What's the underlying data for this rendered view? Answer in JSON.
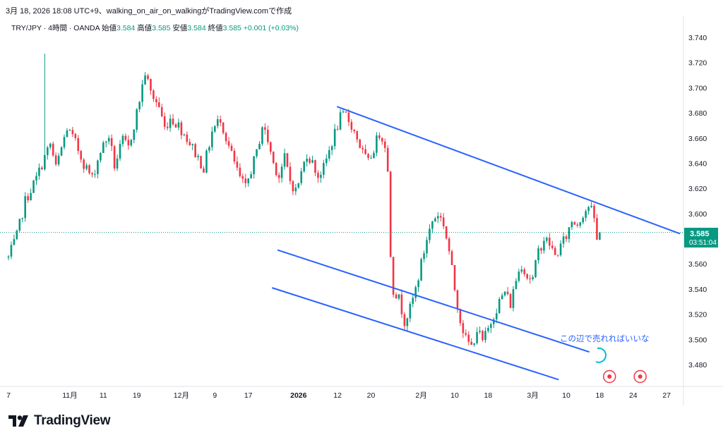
{
  "header": {
    "caption": "3月 18, 2026 18:08 UTC+9、walking_on_air_on_walkingがTradingView.comで作成"
  },
  "symbol": {
    "name": "TRY/JPY · 4時間 · OANDA",
    "open_label": "始値",
    "open": "3.584",
    "high_label": "高値",
    "high": "3.585",
    "low_label": "安値",
    "low": "3.584",
    "close_label": "終値",
    "close": "3.585",
    "change": "+0.001 (+0.03%)"
  },
  "price_badge": {
    "price": "3.585",
    "countdown": "03:51:04"
  },
  "annotation": "この辺で売れればいいな",
  "logo": {
    "text": "TradingView"
  },
  "colors": {
    "up": "#089981",
    "down": "#f23645",
    "trendline": "#2962ff",
    "annotation": "#2962ff",
    "circle": "#00bcd4",
    "event": "#f23645",
    "badge": "#089981"
  },
  "chart_data": {
    "type": "candlestick",
    "y_axis": {
      "min": 3.465,
      "max": 3.745,
      "ticks": [
        "3.480",
        "3.500",
        "3.520",
        "3.540",
        "3.560",
        "3.580",
        "3.600",
        "3.620",
        "3.640",
        "3.660",
        "3.680",
        "3.700",
        "3.720",
        "3.740"
      ]
    },
    "x_ticks": [
      {
        "label": "7",
        "bar": 0
      },
      {
        "label": "11月",
        "bar": 22
      },
      {
        "label": "11",
        "bar": 34
      },
      {
        "label": "19",
        "bar": 46
      },
      {
        "label": "12月",
        "bar": 62
      },
      {
        "label": "9",
        "bar": 74
      },
      {
        "label": "17",
        "bar": 86
      },
      {
        "label": "2026",
        "bar": 104,
        "bold": true
      },
      {
        "label": "12",
        "bar": 118
      },
      {
        "label": "20",
        "bar": 130
      },
      {
        "label": "2月",
        "bar": 148
      },
      {
        "label": "10",
        "bar": 160
      },
      {
        "label": "18",
        "bar": 172
      },
      {
        "label": "3月",
        "bar": 188
      },
      {
        "label": "10",
        "bar": 200
      },
      {
        "label": "18",
        "bar": 212
      },
      {
        "label": "24",
        "bar": 224
      },
      {
        "label": "27",
        "bar": 236
      }
    ],
    "anchors": [
      [
        0,
        3.565
      ],
      [
        3,
        3.582
      ],
      [
        6,
        3.61
      ],
      [
        10,
        3.628
      ],
      [
        13,
        3.645
      ],
      [
        15,
        3.655
      ],
      [
        17,
        3.636
      ],
      [
        19,
        3.652
      ],
      [
        21,
        3.668
      ],
      [
        24,
        3.656
      ],
      [
        27,
        3.64
      ],
      [
        30,
        3.628
      ],
      [
        33,
        3.65
      ],
      [
        36,
        3.662
      ],
      [
        38,
        3.638
      ],
      [
        41,
        3.658
      ],
      [
        43,
        3.652
      ],
      [
        46,
        3.68
      ],
      [
        49,
        3.712
      ],
      [
        51,
        3.696
      ],
      [
        54,
        3.685
      ],
      [
        56,
        3.668
      ],
      [
        58,
        3.676
      ],
      [
        61,
        3.67
      ],
      [
        64,
        3.66
      ],
      [
        67,
        3.648
      ],
      [
        70,
        3.636
      ],
      [
        73,
        3.665
      ],
      [
        76,
        3.676
      ],
      [
        78,
        3.66
      ],
      [
        81,
        3.64
      ],
      [
        83,
        3.628
      ],
      [
        85,
        3.62
      ],
      [
        87,
        3.635
      ],
      [
        89,
        3.648
      ],
      [
        91,
        3.67
      ],
      [
        93,
        3.658
      ],
      [
        95,
        3.64
      ],
      [
        97,
        3.63
      ],
      [
        99,
        3.644
      ],
      [
        101,
        3.626
      ],
      [
        103,
        3.618
      ],
      [
        105,
        3.632
      ],
      [
        107,
        3.648
      ],
      [
        109,
        3.64
      ],
      [
        111,
        3.63
      ],
      [
        113,
        3.636
      ],
      [
        115,
        3.65
      ],
      [
        117,
        3.664
      ],
      [
        119,
        3.676
      ],
      [
        121,
        3.678
      ],
      [
        123,
        3.67
      ],
      [
        125,
        3.66
      ],
      [
        127,
        3.648
      ],
      [
        129,
        3.64
      ],
      [
        131,
        3.652
      ],
      [
        133,
        3.664
      ],
      [
        135,
        3.656
      ],
      [
        136,
        3.632
      ],
      [
        137,
        3.568
      ],
      [
        138,
        3.54
      ],
      [
        140,
        3.532
      ],
      [
        142,
        3.515
      ],
      [
        144,
        3.524
      ],
      [
        146,
        3.54
      ],
      [
        148,
        3.56
      ],
      [
        150,
        3.58
      ],
      [
        152,
        3.594
      ],
      [
        154,
        3.6
      ],
      [
        156,
        3.592
      ],
      [
        158,
        3.57
      ],
      [
        160,
        3.54
      ],
      [
        162,
        3.516
      ],
      [
        164,
        3.5
      ],
      [
        166,
        3.494
      ],
      [
        168,
        3.508
      ],
      [
        170,
        3.498
      ],
      [
        172,
        3.508
      ],
      [
        174,
        3.52
      ],
      [
        176,
        3.53
      ],
      [
        178,
        3.538
      ],
      [
        180,
        3.528
      ],
      [
        182,
        3.548
      ],
      [
        184,
        3.56
      ],
      [
        186,
        3.55
      ],
      [
        188,
        3.548
      ],
      [
        190,
        3.57
      ],
      [
        192,
        3.58
      ],
      [
        194,
        3.576
      ],
      [
        196,
        3.566
      ],
      [
        198,
        3.574
      ],
      [
        200,
        3.582
      ],
      [
        202,
        3.594
      ],
      [
        204,
        3.592
      ],
      [
        206,
        3.6
      ],
      [
        208,
        3.606
      ],
      [
        209,
        3.602
      ],
      [
        210,
        3.596
      ],
      [
        211,
        3.578
      ],
      [
        212,
        3.585
      ]
    ],
    "trendlines": [
      {
        "name": "upper",
        "x1": 117.8,
        "y1": 3.685,
        "x2": 240.8,
        "y2": 3.584
      },
      {
        "name": "lower-channel",
        "x1": 96.5,
        "y1": 3.571,
        "x2": 208.3,
        "y2": 3.49
      },
      {
        "name": "lower",
        "x1": 94.5,
        "y1": 3.541,
        "x2": 197.3,
        "y2": 3.468
      }
    ],
    "events": [
      {
        "bar": 215.5
      },
      {
        "bar": 226.5
      }
    ],
    "current_price": 3.585
  }
}
